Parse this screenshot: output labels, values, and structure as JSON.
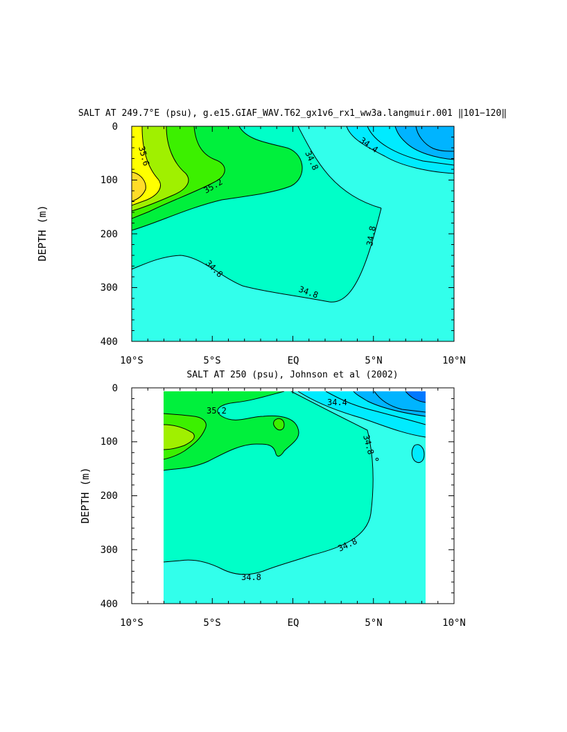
{
  "colors": {
    "band_lt_34_2": "#0078ff",
    "band_34_2_34_4": "#00b4ff",
    "band_34_4_34_6": "#00ebff",
    "band_34_6_34_8": "#32ffeb",
    "band_34_8_35_0": "#00ffc8",
    "band_35_0_35_2": "#00f03c",
    "band_35_2_35_4": "#3cf000",
    "band_35_4_35_6": "#a0f000",
    "band_35_6_35_8": "#ffff00",
    "band_gt_35_8": "#ffdc28"
  },
  "chart_data": [
    {
      "type": "contour",
      "title": "SALT AT 249.7°E (psu), g.e15.GIAF_WAV.T62_gx1v6_rx1_ww3a.langmuir.001 ‖101−120‖",
      "xlabel": "",
      "ylabel": "DEPTH (m)",
      "xlim": [
        -10,
        10
      ],
      "ylim": [
        400,
        0
      ],
      "x_ticks": [
        "10°S",
        "5°S",
        "EQ",
        "5°N",
        "10°N"
      ],
      "y_ticks": [
        "0",
        "100",
        "200",
        "300",
        "400"
      ],
      "contour_labels": [
        "35.6",
        "35.2",
        "34.8",
        "34.4",
        "34.8",
        "34.8",
        "34.8"
      ],
      "data_extent_lat": [
        -10,
        10
      ],
      "data_extent_depth": [
        0,
        400
      ]
    },
    {
      "type": "contour",
      "title": "SALT AT 250 (psu), Johnson et al (2002)",
      "xlabel": "",
      "ylabel": "DEPTH (m)",
      "xlim": [
        -10,
        10
      ],
      "ylim": [
        400,
        0
      ],
      "x_ticks": [
        "10°S",
        "5°S",
        "EQ",
        "5°N",
        "10°N"
      ],
      "y_ticks": [
        "0",
        "100",
        "200",
        "300",
        "400"
      ],
      "contour_labels": [
        "35.2",
        "34.4",
        "34.8",
        "34.8",
        "34.8"
      ],
      "data_extent_lat": [
        -8,
        8.2
      ],
      "data_extent_depth": [
        10,
        400
      ]
    }
  ]
}
